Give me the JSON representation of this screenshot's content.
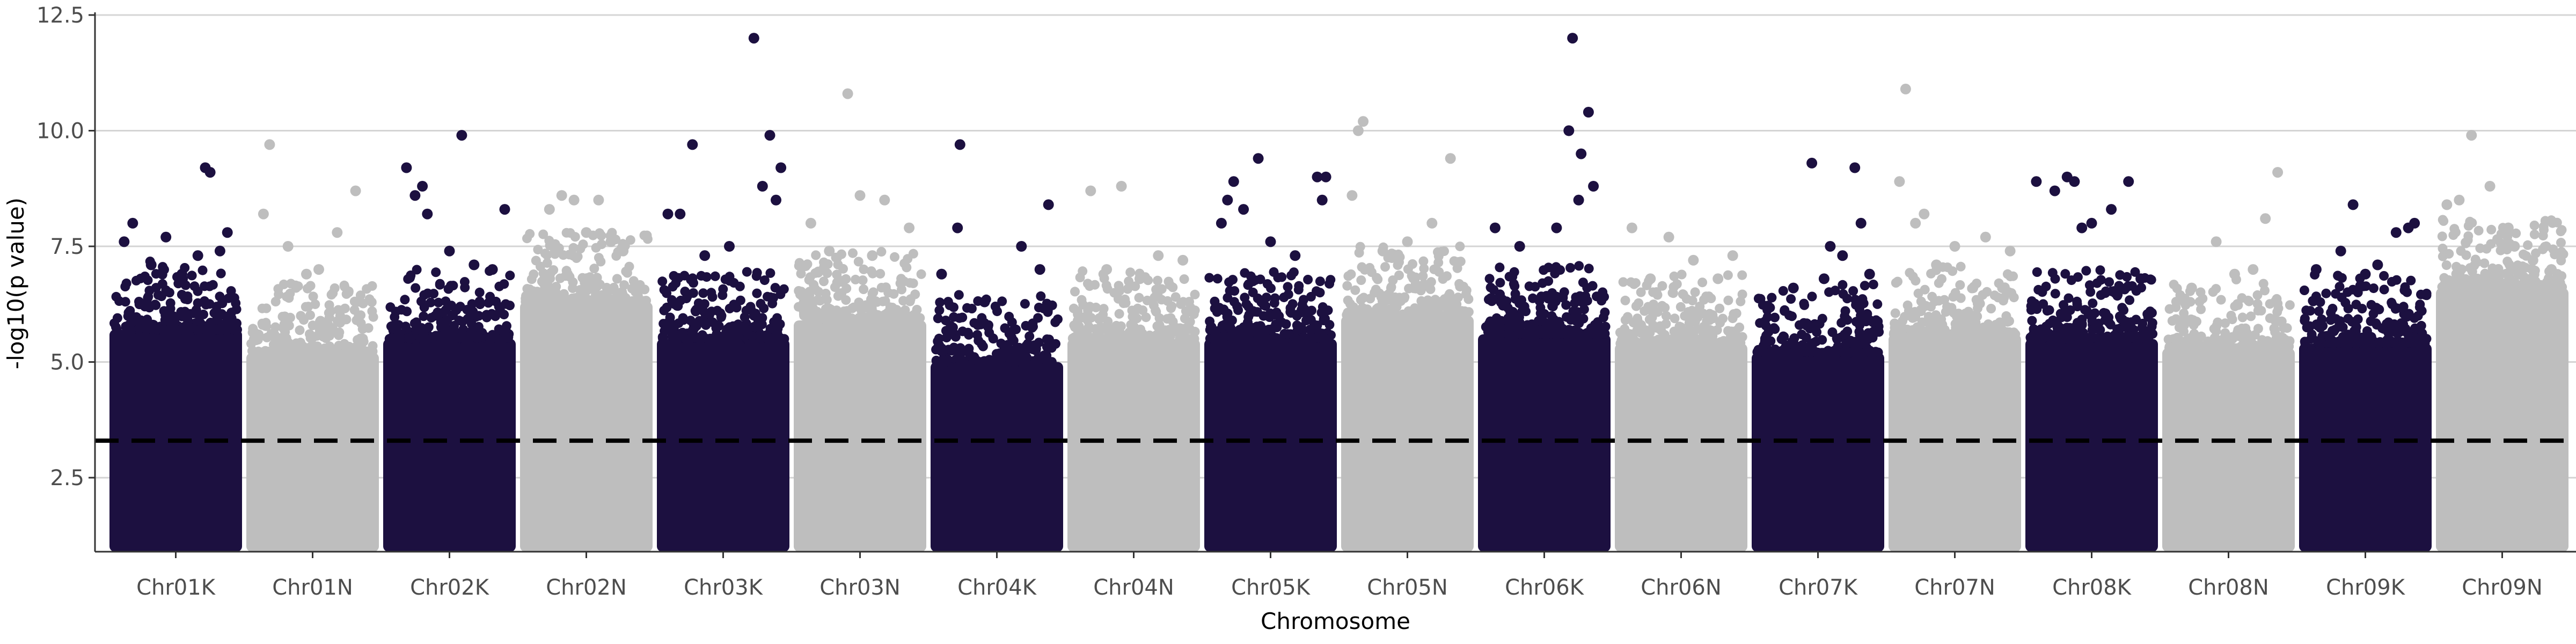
{
  "chart_data": {
    "type": "scatter",
    "subtype": "manhattan",
    "title": "",
    "xlabel": "Chromosome",
    "ylabel": "-log10(p value)",
    "ylim": [
      0.9,
      12.5
    ],
    "yticks": [
      2.5,
      5.0,
      7.5,
      10.0,
      12.5
    ],
    "ytick_labels": [
      "2.5",
      "5.0",
      "7.5",
      "10.0",
      "12.5"
    ],
    "grid": "horizontal",
    "threshold": 3.3,
    "threshold_style": "dashed",
    "colors": {
      "dark": "#1c1040",
      "light": "#bebebe",
      "threshold": "#000000",
      "grid": "#d4d4d4",
      "axis": "#333333"
    },
    "chromosomes": [
      {
        "name": "Chr01K",
        "color": "dark",
        "bulk_top": 5.7,
        "outliers": [
          [
            0.08,
            7.6
          ],
          [
            0.15,
            8.0
          ],
          [
            0.3,
            7.1
          ],
          [
            0.42,
            7.7
          ],
          [
            0.55,
            6.9
          ],
          [
            0.68,
            7.3
          ],
          [
            0.74,
            9.2
          ],
          [
            0.78,
            9.1
          ],
          [
            0.86,
            7.4
          ],
          [
            0.92,
            7.8
          ]
        ]
      },
      {
        "name": "Chr01N",
        "color": "light",
        "bulk_top": 5.2,
        "outliers": [
          [
            0.1,
            8.2
          ],
          [
            0.15,
            9.7
          ],
          [
            0.3,
            7.5
          ],
          [
            0.55,
            7.0
          ],
          [
            0.85,
            8.7
          ],
          [
            0.7,
            7.8
          ],
          [
            0.45,
            6.9
          ]
        ]
      },
      {
        "name": "Chr02K",
        "color": "dark",
        "bulk_top": 5.5,
        "outliers": [
          [
            0.15,
            9.2
          ],
          [
            0.22,
            8.6
          ],
          [
            0.28,
            8.8
          ],
          [
            0.32,
            8.2
          ],
          [
            0.6,
            9.9
          ],
          [
            0.85,
            7.0
          ],
          [
            0.95,
            8.3
          ],
          [
            0.5,
            7.4
          ],
          [
            0.7,
            7.1
          ]
        ]
      },
      {
        "name": "Chr02N",
        "color": "light",
        "bulk_top": 6.3,
        "outliers": [
          [
            0.2,
            8.3
          ],
          [
            0.3,
            8.6
          ],
          [
            0.4,
            8.5
          ],
          [
            0.6,
            8.5
          ],
          [
            0.8,
            7.4
          ],
          [
            0.5,
            7.8
          ],
          [
            0.7,
            7.6
          ]
        ]
      },
      {
        "name": "Chr03K",
        "color": "dark",
        "bulk_top": 5.5,
        "outliers": [
          [
            0.05,
            8.2
          ],
          [
            0.15,
            8.2
          ],
          [
            0.25,
            9.7
          ],
          [
            0.35,
            7.3
          ],
          [
            0.55,
            7.5
          ],
          [
            0.75,
            12.0
          ],
          [
            0.82,
            8.8
          ],
          [
            0.88,
            9.9
          ],
          [
            0.93,
            8.5
          ],
          [
            0.97,
            9.2
          ]
        ]
      },
      {
        "name": "Chr03N",
        "color": "light",
        "bulk_top": 5.9,
        "outliers": [
          [
            0.1,
            8.0
          ],
          [
            0.4,
            10.8
          ],
          [
            0.5,
            8.6
          ],
          [
            0.7,
            8.5
          ],
          [
            0.9,
            7.9
          ],
          [
            0.25,
            7.4
          ],
          [
            0.6,
            7.3
          ]
        ]
      },
      {
        "name": "Chr04K",
        "color": "dark",
        "bulk_top": 5.0,
        "outliers": [
          [
            0.05,
            6.9
          ],
          [
            0.18,
            7.9
          ],
          [
            0.2,
            9.7
          ],
          [
            0.4,
            6.3
          ],
          [
            0.7,
            7.5
          ],
          [
            0.85,
            7.0
          ],
          [
            0.92,
            8.4
          ]
        ]
      },
      {
        "name": "Chr04N",
        "color": "light",
        "bulk_top": 5.5,
        "outliers": [
          [
            0.15,
            8.7
          ],
          [
            0.4,
            8.8
          ],
          [
            0.7,
            7.3
          ],
          [
            0.9,
            7.2
          ],
          [
            0.55,
            6.8
          ],
          [
            0.28,
            7.0
          ]
        ]
      },
      {
        "name": "Chr05K",
        "color": "dark",
        "bulk_top": 5.5,
        "outliers": [
          [
            0.1,
            8.0
          ],
          [
            0.15,
            8.5
          ],
          [
            0.2,
            8.9
          ],
          [
            0.28,
            8.3
          ],
          [
            0.4,
            9.4
          ],
          [
            0.5,
            7.6
          ],
          [
            0.88,
            9.0
          ],
          [
            0.92,
            8.5
          ],
          [
            0.95,
            9.0
          ],
          [
            0.7,
            7.3
          ]
        ]
      },
      {
        "name": "Chr05N",
        "color": "light",
        "bulk_top": 6.0,
        "outliers": [
          [
            0.05,
            8.6
          ],
          [
            0.1,
            10.0
          ],
          [
            0.14,
            10.2
          ],
          [
            0.3,
            7.4
          ],
          [
            0.7,
            8.0
          ],
          [
            0.85,
            9.4
          ],
          [
            0.5,
            7.6
          ]
        ]
      },
      {
        "name": "Chr06K",
        "color": "dark",
        "bulk_top": 5.6,
        "outliers": [
          [
            0.1,
            7.9
          ],
          [
            0.3,
            7.5
          ],
          [
            0.7,
            10.0
          ],
          [
            0.73,
            12.0
          ],
          [
            0.8,
            9.5
          ],
          [
            0.86,
            10.4
          ],
          [
            0.78,
            8.5
          ],
          [
            0.6,
            7.9
          ],
          [
            0.9,
            8.8
          ]
        ]
      },
      {
        "name": "Chr06N",
        "color": "light",
        "bulk_top": 5.4,
        "outliers": [
          [
            0.1,
            7.9
          ],
          [
            0.4,
            7.7
          ],
          [
            0.6,
            7.2
          ],
          [
            0.8,
            6.8
          ],
          [
            0.92,
            7.3
          ],
          [
            0.25,
            6.8
          ]
        ]
      },
      {
        "name": "Chr07K",
        "color": "dark",
        "bulk_top": 5.2,
        "outliers": [
          [
            0.3,
            6.6
          ],
          [
            0.45,
            9.3
          ],
          [
            0.55,
            6.8
          ],
          [
            0.7,
            7.3
          ],
          [
            0.8,
            9.2
          ],
          [
            0.85,
            8.0
          ],
          [
            0.92,
            6.9
          ],
          [
            0.6,
            7.5
          ]
        ]
      },
      {
        "name": "Chr07N",
        "color": "light",
        "bulk_top": 5.6,
        "outliers": [
          [
            0.05,
            8.9
          ],
          [
            0.1,
            10.9
          ],
          [
            0.18,
            8.0
          ],
          [
            0.25,
            8.2
          ],
          [
            0.5,
            7.5
          ],
          [
            0.75,
            7.7
          ],
          [
            0.95,
            7.4
          ],
          [
            0.35,
            7.1
          ]
        ]
      },
      {
        "name": "Chr08K",
        "color": "dark",
        "bulk_top": 5.5,
        "outliers": [
          [
            0.05,
            8.9
          ],
          [
            0.2,
            8.7
          ],
          [
            0.3,
            9.0
          ],
          [
            0.36,
            8.9
          ],
          [
            0.5,
            8.0
          ],
          [
            0.66,
            8.3
          ],
          [
            0.8,
            8.9
          ],
          [
            0.9,
            6.8
          ],
          [
            0.42,
            7.9
          ]
        ]
      },
      {
        "name": "Chr08N",
        "color": "light",
        "bulk_top": 5.3,
        "outliers": [
          [
            0.2,
            6.6
          ],
          [
            0.4,
            7.6
          ],
          [
            0.7,
            7.0
          ],
          [
            0.9,
            9.1
          ],
          [
            0.55,
            6.9
          ],
          [
            0.8,
            8.1
          ]
        ]
      },
      {
        "name": "Chr09K",
        "color": "dark",
        "bulk_top": 5.4,
        "outliers": [
          [
            0.1,
            7.0
          ],
          [
            0.3,
            7.4
          ],
          [
            0.4,
            8.4
          ],
          [
            0.6,
            7.1
          ],
          [
            0.75,
            7.8
          ],
          [
            0.85,
            7.9
          ],
          [
            0.9,
            8.0
          ],
          [
            0.5,
            6.9
          ]
        ]
      },
      {
        "name": "Chr09N",
        "color": "light",
        "bulk_top": 6.6,
        "outliers": [
          [
            0.05,
            8.4
          ],
          [
            0.15,
            8.5
          ],
          [
            0.25,
            9.9
          ],
          [
            0.4,
            8.8
          ],
          [
            0.55,
            7.9
          ],
          [
            0.75,
            7.2
          ],
          [
            0.9,
            7.0
          ],
          [
            0.6,
            7.5
          ]
        ]
      }
    ]
  }
}
